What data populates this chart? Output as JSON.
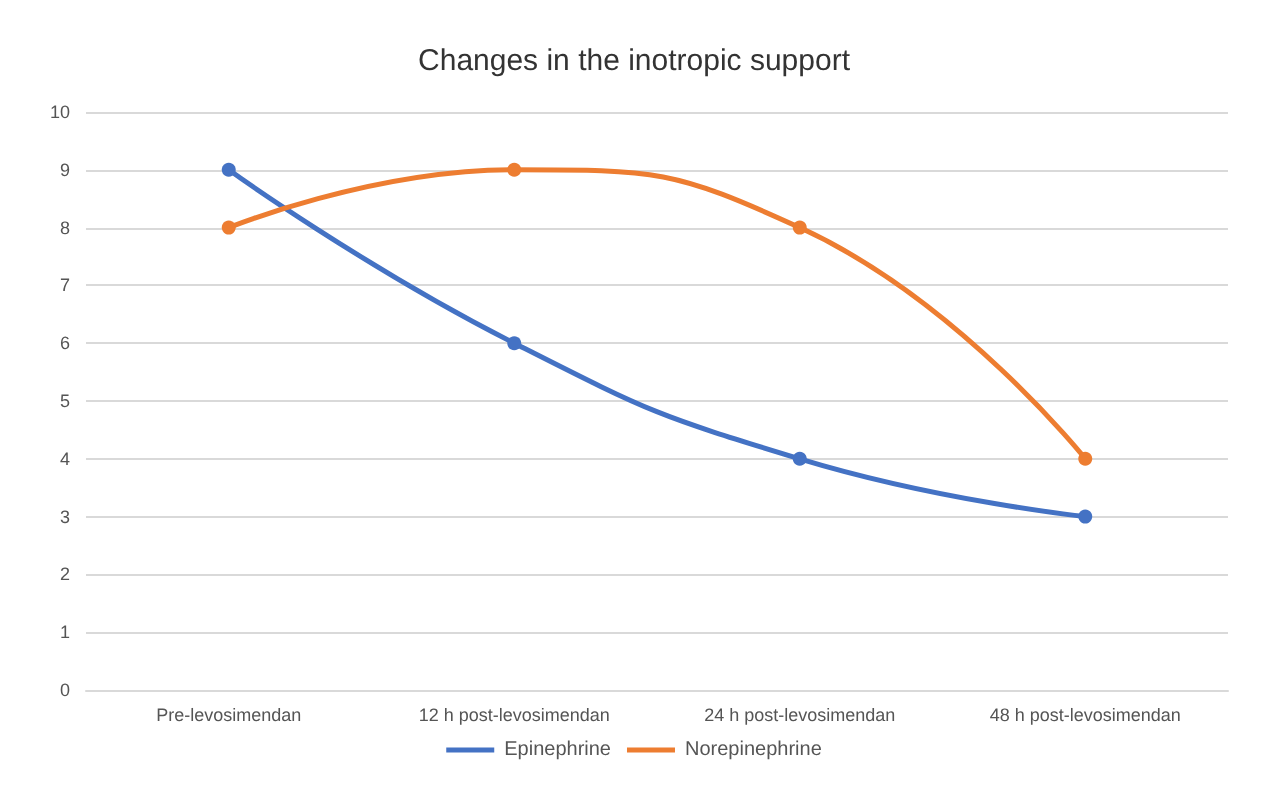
{
  "chart_data": {
    "type": "line",
    "title": "Changes in the inotropic support",
    "categories": [
      "Pre-levosimendan",
      "12 h post-levosimendan",
      "24 h post-levosimendan",
      "48 h post-levosimendan"
    ],
    "series": [
      {
        "name": "Epinephrine",
        "color": "#4472c4",
        "values": [
          9,
          6,
          4,
          3
        ]
      },
      {
        "name": "Norepinephrine",
        "color": "#ed7d31",
        "values": [
          8,
          9,
          8,
          4
        ]
      }
    ],
    "ylim": [
      0,
      10
    ],
    "yticks": [
      0,
      1,
      2,
      3,
      4,
      5,
      6,
      7,
      8,
      9,
      10
    ],
    "grid": "y",
    "legend": "bottom",
    "marker": "circle",
    "line_style": "solid"
  }
}
